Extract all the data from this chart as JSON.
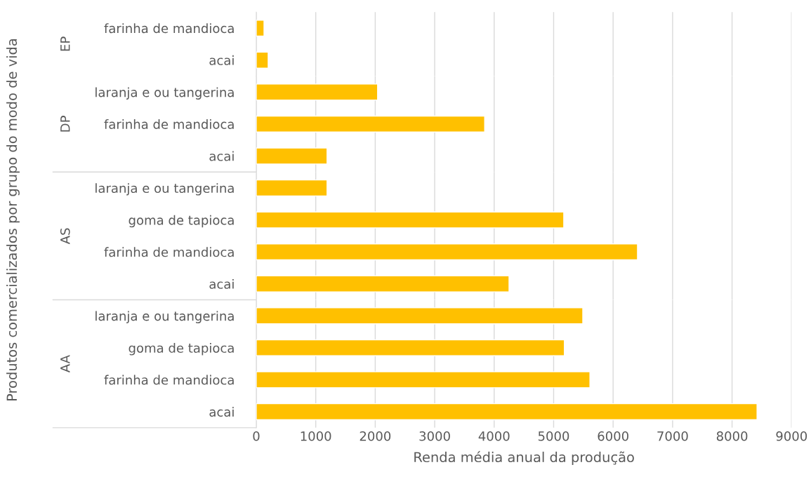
{
  "chart_data": [
    {
      "type": "bar",
      "orientation": "horizontal",
      "title": "EP",
      "ylabel": "Produtos comercializados por grupo do modo de vida",
      "categories": [
        "farinha de mandioca",
        "acai"
      ],
      "values": [
        130,
        200
      ],
      "color": "#ffc000",
      "xlim": [
        0,
        9000
      ],
      "xticks": [
        0,
        1000,
        2000,
        3000,
        4000,
        5000,
        6000,
        7000,
        8000,
        9000
      ],
      "grid": "x",
      "tick_labels": "y"
    },
    {
      "type": "bar",
      "orientation": "horizontal",
      "title": "DP",
      "categories": [
        "laranja e ou tangerina",
        "farinha de mandioca",
        "acai"
      ],
      "values": [
        2040,
        3840,
        1190
      ],
      "color": "#ffc000",
      "xlim": [
        0,
        9000
      ],
      "xticks": [
        0,
        1000,
        2000,
        3000,
        4000,
        5000,
        6000,
        7000,
        8000,
        9000
      ],
      "grid": "x",
      "tick_labels": "y"
    },
    {
      "type": "bar",
      "orientation": "horizontal",
      "title": "AS",
      "categories": [
        "laranja e ou tangerina",
        "goma de tapioca",
        "farinha de mandioca",
        "acai"
      ],
      "values": [
        1190,
        5170,
        6410,
        4250
      ],
      "color": "#ffc000",
      "xlim": [
        0,
        9000
      ],
      "xticks": [
        0,
        1000,
        2000,
        3000,
        4000,
        5000,
        6000,
        7000,
        8000,
        9000
      ],
      "grid": "x",
      "tick_labels": "y"
    },
    {
      "type": "bar",
      "orientation": "horizontal",
      "title": "AA",
      "xlabel": "Renda média anual da produção",
      "categories": [
        "laranja e ou tangerina",
        "goma de tapioca",
        "farinha de mandioca",
        "acai"
      ],
      "values": [
        5490,
        5180,
        5610,
        8420
      ],
      "color": "#ffc000",
      "xlim": [
        0,
        9000
      ],
      "xticks": [
        0,
        1000,
        2000,
        3000,
        4000,
        5000,
        6000,
        7000,
        8000,
        9000
      ],
      "grid": "x"
    }
  ]
}
